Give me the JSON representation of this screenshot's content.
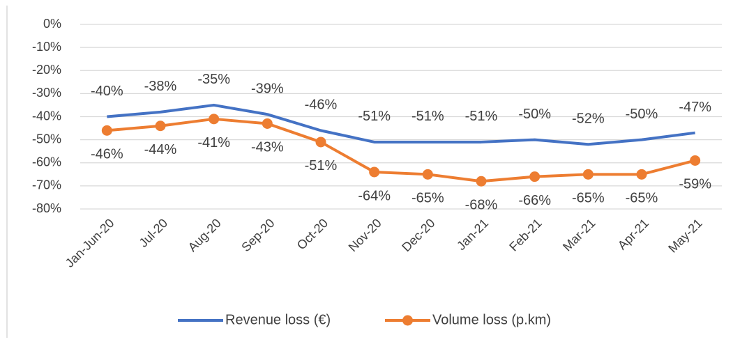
{
  "chart_data": {
    "type": "line",
    "categories": [
      "Jan-Jun-20",
      "Jul-20",
      "Aug-20",
      "Sep-20",
      "Oct-20",
      "Nov-20",
      "Dec-20",
      "Jan-21",
      "Feb-21",
      "Mar-21",
      "Apr-21",
      "May-21"
    ],
    "series": [
      {
        "name": "Revenue loss (€)",
        "color": "#4472c4",
        "values": [
          -40,
          -38,
          -35,
          -39,
          -46,
          -51,
          -51,
          -51,
          -50,
          -52,
          -50,
          -47
        ],
        "value_labels": [
          "-40%",
          "-38%",
          "-35%",
          "-39%",
          "-46%",
          "-51%",
          "-51%",
          "-51%",
          "-50%",
          "-52%",
          "-50%",
          "-47%"
        ]
      },
      {
        "name": "Volume loss (p.km)",
        "color": "#ed7d31",
        "values": [
          -46,
          -44,
          -41,
          -43,
          -51,
          -64,
          -65,
          -68,
          -66,
          -65,
          -65,
          -59
        ],
        "value_labels": [
          "-46%",
          "-44%",
          "-41%",
          "-43%",
          "-51%",
          "-64%",
          "-65%",
          "-68%",
          "-66%",
          "-65%",
          "-65%",
          "-59%"
        ]
      }
    ],
    "ylim": [
      -80,
      0
    ],
    "yticks": [
      {
        "value": 0,
        "label": "0%"
      },
      {
        "value": -10,
        "label": "-10%"
      },
      {
        "value": -20,
        "label": "-20%"
      },
      {
        "value": -30,
        "label": "-30%"
      },
      {
        "value": -40,
        "label": "-40%"
      },
      {
        "value": -50,
        "label": "-50%"
      },
      {
        "value": -60,
        "label": "-60%"
      },
      {
        "value": -70,
        "label": "-70%"
      },
      {
        "value": -80,
        "label": "-80%"
      }
    ],
    "grid": true,
    "legend": "bottom"
  }
}
